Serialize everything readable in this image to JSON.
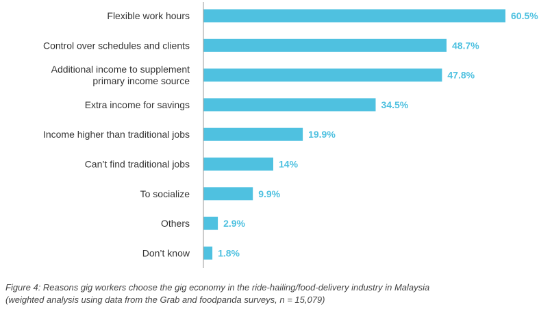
{
  "colors": {
    "bar": "#4fc1e0",
    "value_text": "#4fc1e0",
    "axis": "#9a9a9a"
  },
  "chart_data": {
    "type": "bar",
    "orientation": "horizontal",
    "categories": [
      [
        "Flexible work hours"
      ],
      [
        "Control over schedules and clients"
      ],
      [
        "Additional income to supplement",
        "primary income source"
      ],
      [
        "Extra income for savings"
      ],
      [
        "Income higher than traditional jobs"
      ],
      [
        "Can’t find traditional jobs"
      ],
      [
        "To socialize"
      ],
      [
        "Others"
      ],
      [
        "Don’t know"
      ]
    ],
    "values": [
      60.5,
      48.7,
      47.8,
      34.5,
      19.9,
      14,
      9.9,
      2.9,
      1.8
    ],
    "value_labels": [
      "60.5%",
      "48.7%",
      "47.8%",
      "34.5%",
      "19.9%",
      "14%",
      "9.9%",
      "2.9%",
      "1.8%"
    ],
    "xlim": [
      0,
      60.5
    ]
  },
  "caption": {
    "line1": "Figure 4: Reasons gig workers choose the gig economy in the ride-hailing/food-delivery industry in Malaysia",
    "line2": "(weighted analysis using data from the Grab and foodpanda surveys, n = 15,079)"
  }
}
